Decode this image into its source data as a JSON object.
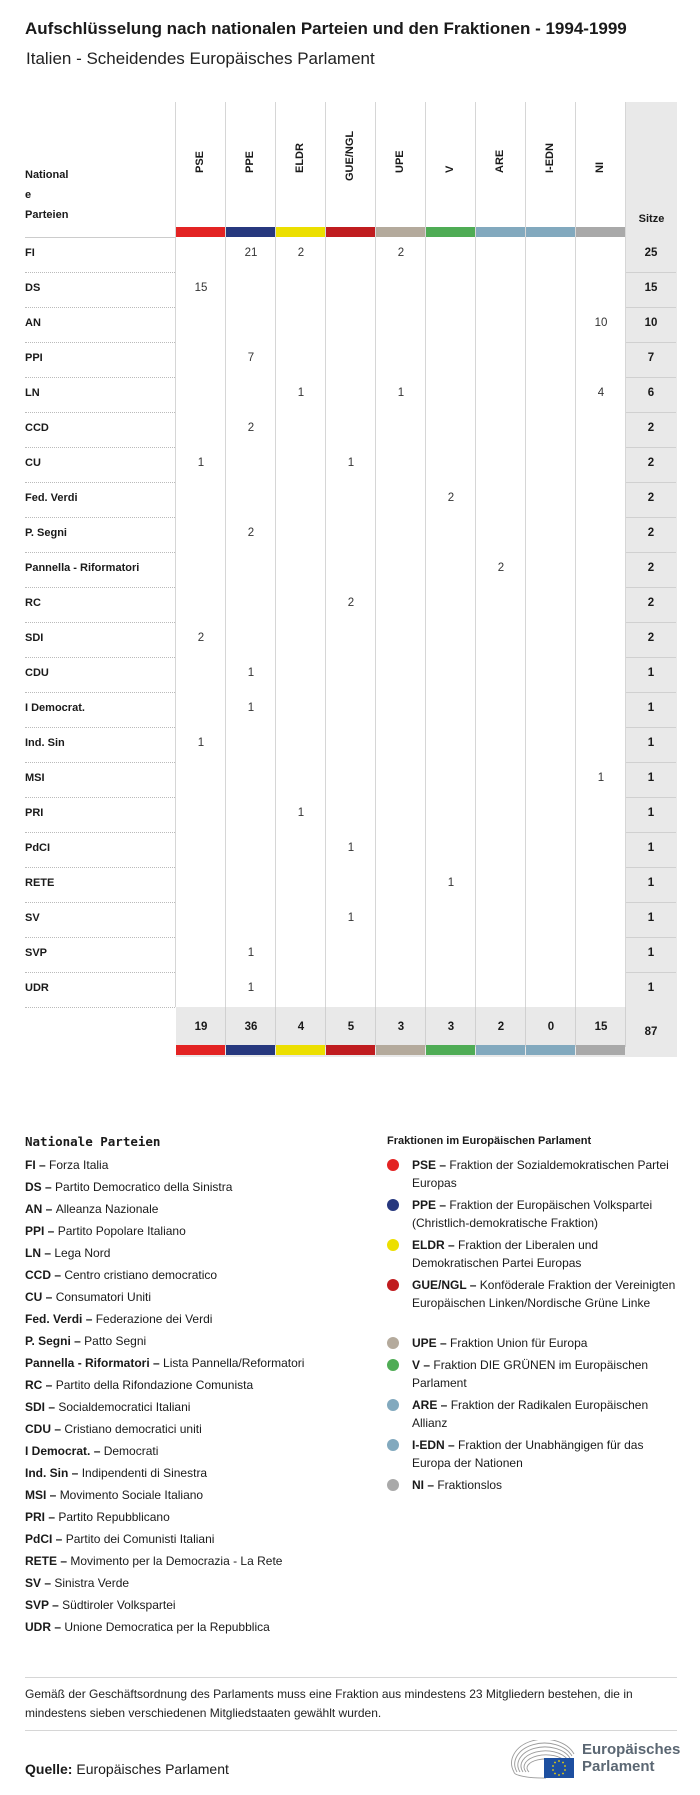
{
  "title": "Aufschlüsselung nach nationalen Parteien und den Fraktionen - 1994-1999",
  "subtitle": "Italien - Scheidendes Europäisches Parlament",
  "table": {
    "row_header_lines": [
      "National",
      "e",
      "Parteien"
    ],
    "total_header": "Sitze",
    "groups": [
      {
        "code": "PSE",
        "color": "#e32323"
      },
      {
        "code": "PPE",
        "color": "#27387e"
      },
      {
        "code": "ELDR",
        "color": "#ecdf00"
      },
      {
        "code": "GUE/NGL",
        "color": "#c01c1f"
      },
      {
        "code": "UPE",
        "color": "#b4aa9c"
      },
      {
        "code": "V",
        "color": "#4fac55"
      },
      {
        "code": "ARE",
        "color": "#82a9be"
      },
      {
        "code": "I-EDN",
        "color": "#82a9be"
      },
      {
        "code": "NI",
        "color": "#a9a9a9"
      }
    ],
    "rows": [
      {
        "party": "FI",
        "values": [
          "",
          "21",
          "2",
          "",
          "2",
          "",
          "",
          "",
          ""
        ],
        "total": "25"
      },
      {
        "party": "DS",
        "values": [
          "15",
          "",
          "",
          "",
          "",
          "",
          "",
          "",
          ""
        ],
        "total": "15"
      },
      {
        "party": "AN",
        "values": [
          "",
          "",
          "",
          "",
          "",
          "",
          "",
          "",
          "10"
        ],
        "total": "10"
      },
      {
        "party": "PPI",
        "values": [
          "",
          "7",
          "",
          "",
          "",
          "",
          "",
          "",
          ""
        ],
        "total": "7"
      },
      {
        "party": "LN",
        "values": [
          "",
          "",
          "1",
          "",
          "1",
          "",
          "",
          "",
          "4"
        ],
        "total": "6"
      },
      {
        "party": "CCD",
        "values": [
          "",
          "2",
          "",
          "",
          "",
          "",
          "",
          "",
          ""
        ],
        "total": "2"
      },
      {
        "party": "CU",
        "values": [
          "1",
          "",
          "",
          "1",
          "",
          "",
          "",
          "",
          ""
        ],
        "total": "2"
      },
      {
        "party": "Fed. Verdi",
        "values": [
          "",
          "",
          "",
          "",
          "",
          "2",
          "",
          "",
          ""
        ],
        "total": "2"
      },
      {
        "party": "P. Segni",
        "values": [
          "",
          "2",
          "",
          "",
          "",
          "",
          "",
          "",
          ""
        ],
        "total": "2"
      },
      {
        "party": "Pannella - Riformatori",
        "values": [
          "",
          "",
          "",
          "",
          "",
          "",
          "2",
          "",
          ""
        ],
        "total": "2"
      },
      {
        "party": "RC",
        "values": [
          "",
          "",
          "",
          "2",
          "",
          "",
          "",
          "",
          ""
        ],
        "total": "2"
      },
      {
        "party": "SDI",
        "values": [
          "2",
          "",
          "",
          "",
          "",
          "",
          "",
          "",
          ""
        ],
        "total": "2"
      },
      {
        "party": "CDU",
        "values": [
          "",
          "1",
          "",
          "",
          "",
          "",
          "",
          "",
          ""
        ],
        "total": "1"
      },
      {
        "party": "I Democrat.",
        "values": [
          "",
          "1",
          "",
          "",
          "",
          "",
          "",
          "",
          ""
        ],
        "total": "1"
      },
      {
        "party": "Ind. Sin",
        "values": [
          "1",
          "",
          "",
          "",
          "",
          "",
          "",
          "",
          ""
        ],
        "total": "1"
      },
      {
        "party": "MSI",
        "values": [
          "",
          "",
          "",
          "",
          "",
          "",
          "",
          "",
          "1"
        ],
        "total": "1"
      },
      {
        "party": "PRI",
        "values": [
          "",
          "",
          "1",
          "",
          "",
          "",
          "",
          "",
          ""
        ],
        "total": "1"
      },
      {
        "party": "PdCI",
        "values": [
          "",
          "",
          "",
          "1",
          "",
          "",
          "",
          "",
          ""
        ],
        "total": "1"
      },
      {
        "party": "RETE",
        "values": [
          "",
          "",
          "",
          "",
          "",
          "1",
          "",
          "",
          ""
        ],
        "total": "1"
      },
      {
        "party": "SV",
        "values": [
          "",
          "",
          "",
          "1",
          "",
          "",
          "",
          "",
          ""
        ],
        "total": "1"
      },
      {
        "party": "SVP",
        "values": [
          "",
          "1",
          "",
          "",
          "",
          "",
          "",
          "",
          ""
        ],
        "total": "1"
      },
      {
        "party": "UDR",
        "values": [
          "",
          "1",
          "",
          "",
          "",
          "",
          "",
          "",
          ""
        ],
        "total": "1"
      }
    ],
    "column_totals": [
      "19",
      "36",
      "4",
      "5",
      "3",
      "3",
      "2",
      "0",
      "15"
    ],
    "grand_total": "87"
  },
  "legend_national": {
    "heading": "Nationale Parteien",
    "items": [
      {
        "code": "FI",
        "name": "Forza Italia"
      },
      {
        "code": "DS",
        "name": "Partito Democratico della Sinistra"
      },
      {
        "code": "AN",
        "name": "Alleanza Nazionale"
      },
      {
        "code": "PPI",
        "name": "Partito Popolare Italiano"
      },
      {
        "code": "LN",
        "name": "Lega Nord"
      },
      {
        "code": "CCD",
        "name": "Centro cristiano democratico"
      },
      {
        "code": "CU",
        "name": "Consumatori Uniti"
      },
      {
        "code": "Fed. Verdi",
        "name": "Federazione dei Verdi"
      },
      {
        "code": "P. Segni",
        "name": "Patto Segni"
      },
      {
        "code": "Pannella - Riformatori",
        "name": "Lista Pannella/Reformatori"
      },
      {
        "code": "RC",
        "name": "Partito della Rifondazione Comunista"
      },
      {
        "code": "SDI",
        "name": "Socialdemocratici Italiani"
      },
      {
        "code": "CDU",
        "name": "Cristiano democratici uniti"
      },
      {
        "code": "I Democrat.",
        "name": "Democrati"
      },
      {
        "code": "Ind. Sin",
        "name": "Indipendenti di Sinestra"
      },
      {
        "code": "MSI",
        "name": "Movimento Sociale Italiano"
      },
      {
        "code": "PRI",
        "name": "Partito Repubblicano"
      },
      {
        "code": "PdCI",
        "name": "Partito dei Comunisti Italiani"
      },
      {
        "code": "RETE",
        "name": "Movimento per la Democrazia - La Rete"
      },
      {
        "code": "SV",
        "name": "Sinistra Verde"
      },
      {
        "code": "SVP",
        "name": "Südtiroler Volkspartei"
      },
      {
        "code": "UDR",
        "name": "Unione Democratica per la Repubblica"
      }
    ]
  },
  "legend_groups": {
    "heading": "Fraktionen im Europäischen Parlament",
    "items": [
      {
        "code": "PSE",
        "name": "Fraktion der Sozialdemokratischen Partei Europas",
        "color": "#e32323"
      },
      {
        "code": "PPE",
        "name": "Fraktion der Europäischen Volkspartei (Christlich-demokratische Fraktion)",
        "color": "#27387e"
      },
      {
        "code": "ELDR",
        "name": "Fraktion der Liberalen und Demokratischen Partei Europas",
        "color": "#ecdf00"
      },
      {
        "code": "GUE/NGL",
        "name": "Konföderale Fraktion der Vereinigten Europäischen Linken/Nordische Grüne Linke",
        "color": "#c01c1f"
      },
      {
        "code": "UPE",
        "name": "Fraktion Union für Europa",
        "color": "#b4aa9c"
      },
      {
        "code": "V",
        "name": "Fraktion DIE GRÜNEN im Europäischen Parlament",
        "color": "#4fac55"
      },
      {
        "code": "ARE",
        "name": "Fraktion der Radikalen Europäischen Allianz",
        "color": "#82a9be"
      },
      {
        "code": "I-EDN",
        "name": "Fraktion der Unabhängigen für das Europa der Nationen",
        "color": "#82a9be"
      },
      {
        "code": "NI",
        "name": "Fraktionslos",
        "color": "#a9a9a9"
      }
    ]
  },
  "footnote": "Gemäß der Geschäftsordnung des Parlaments muss eine Fraktion aus mindestens 23 Mitgliedern bestehen, die in mindestens sieben verschiedenen Mitgliedstaaten gewählt wurden.",
  "source": {
    "label": "Quelle:",
    "value": "Europäisches Parlament"
  },
  "logo": {
    "line1": "Europäisches",
    "line2": "Parlament"
  }
}
